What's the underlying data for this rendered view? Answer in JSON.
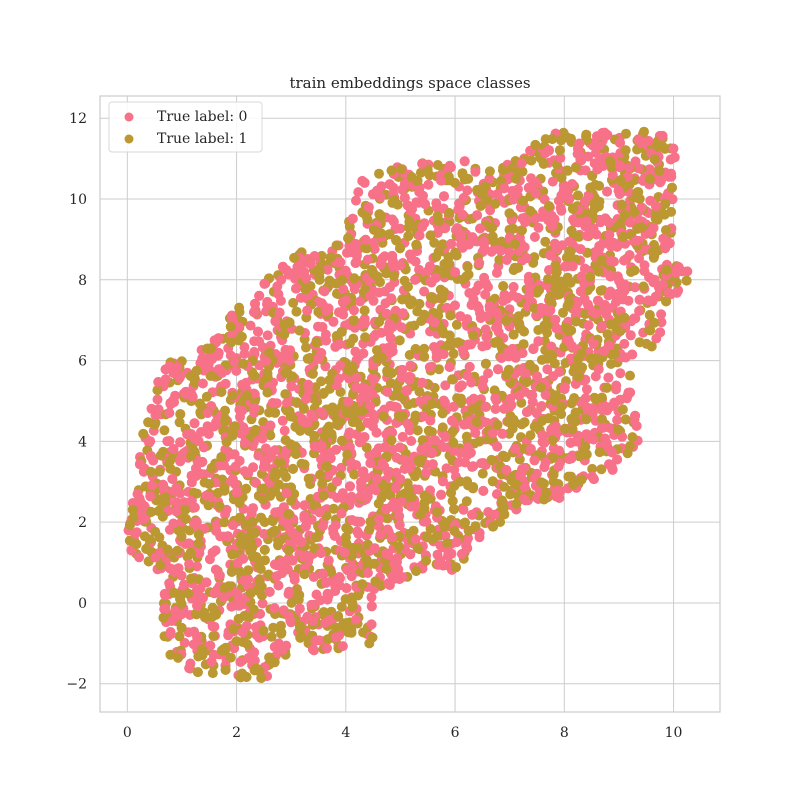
{
  "chart_data": {
    "type": "scatter",
    "title": "train embeddings space classes",
    "xlabel": "",
    "ylabel": "",
    "xlim": [
      -0.5,
      10.85
    ],
    "ylim": [
      -2.7,
      12.55
    ],
    "x_ticks": [
      0,
      2,
      4,
      6,
      8,
      10
    ],
    "y_ticks": [
      -2,
      0,
      2,
      4,
      6,
      8,
      10,
      12
    ],
    "x_tick_labels": [
      "0",
      "2",
      "4",
      "6",
      "8",
      "10"
    ],
    "y_tick_labels": [
      "−2",
      "0",
      "2",
      "4",
      "6",
      "8",
      "10",
      "12"
    ],
    "grid": true,
    "legend_position": "top-left",
    "series": [
      {
        "name": "True label: 0",
        "color": "#f77189"
      },
      {
        "name": "True label: 1",
        "color": "#bb9832"
      }
    ],
    "cloud_outline": [
      [
        0.0,
        1.9
      ],
      [
        0.3,
        4.3
      ],
      [
        0.7,
        6.1
      ],
      [
        1.5,
        6.4
      ],
      [
        2.0,
        7.3
      ],
      [
        3.0,
        8.6
      ],
      [
        4.0,
        9.1
      ],
      [
        4.2,
        10.4
      ],
      [
        5.0,
        10.9
      ],
      [
        6.0,
        11.0
      ],
      [
        6.7,
        10.8
      ],
      [
        7.2,
        11.0
      ],
      [
        7.7,
        11.8
      ],
      [
        8.5,
        11.6
      ],
      [
        9.5,
        11.8
      ],
      [
        10.0,
        11.5
      ],
      [
        10.1,
        10.5
      ],
      [
        10.0,
        8.5
      ],
      [
        10.4,
        8.2
      ],
      [
        10.0,
        7.4
      ],
      [
        9.7,
        6.5
      ],
      [
        9.2,
        5.3
      ],
      [
        9.4,
        4.1
      ],
      [
        9.0,
        3.2
      ],
      [
        8.0,
        2.6
      ],
      [
        7.2,
        2.4
      ],
      [
        6.5,
        1.6
      ],
      [
        6.0,
        0.8
      ],
      [
        5.0,
        0.5
      ],
      [
        4.5,
        0.3
      ],
      [
        4.5,
        -1.0
      ],
      [
        3.0,
        -1.3
      ],
      [
        2.5,
        -1.9
      ],
      [
        1.3,
        -1.8
      ],
      [
        0.7,
        -1.2
      ],
      [
        0.6,
        0.0
      ],
      [
        0.7,
        0.7
      ],
      [
        0.1,
        1.1
      ]
    ]
  }
}
